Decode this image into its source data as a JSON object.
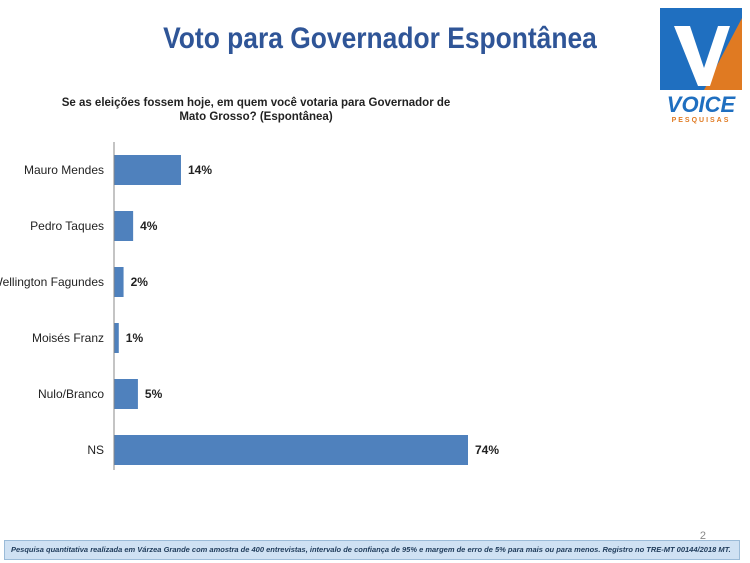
{
  "header": {
    "title": "Voto para Governador Espontânea",
    "logo_text": "VOICE",
    "logo_subtext": "PESQUISAS"
  },
  "chart_data": {
    "type": "bar",
    "orientation": "horizontal",
    "title": "Se as eleições fossem hoje, em quem você votaria para Governador de Mato Grosso? (Espontânea)",
    "categories": [
      "Mauro Mendes",
      "Pedro Taques",
      "Wellington Fagundes",
      "Moisés Franz",
      "Nulo/Branco",
      "NS"
    ],
    "values": [
      14,
      4,
      2,
      1,
      5,
      74
    ],
    "value_labels": [
      "14%",
      "4%",
      "2%",
      "1%",
      "5%",
      "74%"
    ],
    "xlim": [
      0,
      74
    ],
    "grid": false,
    "bar_color": "#4f81bd"
  },
  "page_number": "2",
  "footer_text": "Pesquisa quantitativa realizada em Várzea Grande com  amostra de 400 entrevistas, intervalo de confiança de 95% e margem de erro de 5% para mais ou para menos. Registro no TRE-MT  00144/2018 MT."
}
